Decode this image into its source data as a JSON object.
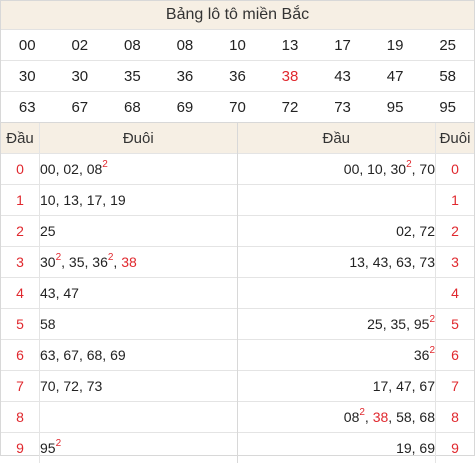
{
  "title": "Bảng lô tô miền Bắc",
  "numbers": [
    [
      "00",
      "02",
      "08",
      "08",
      "10",
      "13",
      "17",
      "19",
      "25"
    ],
    [
      "30",
      "30",
      "35",
      "36",
      "36",
      "38",
      "43",
      "47",
      "58"
    ],
    [
      "63",
      "67",
      "68",
      "69",
      "70",
      "72",
      "73",
      "95",
      "95"
    ]
  ],
  "highlight_numbers": [
    "38"
  ],
  "highlight_color": "#e0282e",
  "left": {
    "col_head": "Đầu",
    "col_tail": "Đuôi",
    "rows": [
      {
        "head": "0",
        "tails": [
          {
            "v": "00"
          },
          {
            "v": "02"
          },
          {
            "v": "08",
            "sup": "2"
          }
        ]
      },
      {
        "head": "1",
        "tails": [
          {
            "v": "10"
          },
          {
            "v": "13"
          },
          {
            "v": "17"
          },
          {
            "v": "19"
          }
        ]
      },
      {
        "head": "2",
        "tails": [
          {
            "v": "25"
          }
        ]
      },
      {
        "head": "3",
        "tails": [
          {
            "v": "30",
            "sup": "2"
          },
          {
            "v": "35"
          },
          {
            "v": "36",
            "sup": "2"
          },
          {
            "v": "38",
            "red": true
          }
        ]
      },
      {
        "head": "4",
        "tails": [
          {
            "v": "43"
          },
          {
            "v": "47"
          }
        ]
      },
      {
        "head": "5",
        "tails": [
          {
            "v": "58"
          }
        ]
      },
      {
        "head": "6",
        "tails": [
          {
            "v": "63"
          },
          {
            "v": "67"
          },
          {
            "v": "68"
          },
          {
            "v": "69"
          }
        ]
      },
      {
        "head": "7",
        "tails": [
          {
            "v": "70"
          },
          {
            "v": "72"
          },
          {
            "v": "73"
          }
        ]
      },
      {
        "head": "8",
        "tails": []
      },
      {
        "head": "9",
        "tails": [
          {
            "v": "95",
            "sup": "2"
          }
        ]
      }
    ]
  },
  "right": {
    "col_head": "Đầu",
    "col_tail": "Đuôi",
    "rows": [
      {
        "tail": "0",
        "heads": [
          {
            "v": "00"
          },
          {
            "v": "10"
          },
          {
            "v": "30",
            "sup": "2"
          },
          {
            "v": "70"
          }
        ]
      },
      {
        "tail": "1",
        "heads": []
      },
      {
        "tail": "2",
        "heads": [
          {
            "v": "02"
          },
          {
            "v": "72"
          }
        ]
      },
      {
        "tail": "3",
        "heads": [
          {
            "v": "13"
          },
          {
            "v": "43"
          },
          {
            "v": "63"
          },
          {
            "v": "73"
          }
        ]
      },
      {
        "tail": "4",
        "heads": []
      },
      {
        "tail": "5",
        "heads": [
          {
            "v": "25"
          },
          {
            "v": "35"
          },
          {
            "v": "95",
            "sup": "2"
          }
        ]
      },
      {
        "tail": "6",
        "heads": [
          {
            "v": "36",
            "sup": "2"
          }
        ]
      },
      {
        "tail": "7",
        "heads": [
          {
            "v": "17"
          },
          {
            "v": "47"
          },
          {
            "v": "67"
          }
        ]
      },
      {
        "tail": "8",
        "heads": [
          {
            "v": "08",
            "sup": "2"
          },
          {
            "v": "38",
            "red": true
          },
          {
            "v": "58"
          },
          {
            "v": "68"
          }
        ]
      },
      {
        "tail": "9",
        "heads": [
          {
            "v": "19"
          },
          {
            "v": "69"
          }
        ]
      }
    ]
  }
}
